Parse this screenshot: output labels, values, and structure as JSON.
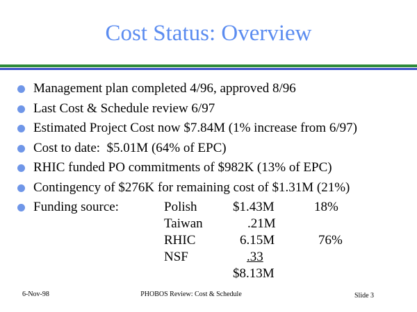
{
  "title": "Cost Status: Overview",
  "bullets": [
    "Management plan completed 4/96, approved 8/96",
    "Last Cost & Schedule review 6/97",
    "Estimated Project Cost now $7.84M (1% increase from 6/97)",
    "Cost to date:  $5.01M (64% of EPC)",
    "RHIC funded PO commitments of $982K (13% of EPC)",
    "Contingency of $276K for remaining cost of $1.31M (21%)",
    "Funding source:"
  ],
  "funding": {
    "rows": [
      {
        "name": "Polish",
        "amount": "$1.43M",
        "percent": "18%"
      },
      {
        "name": "Taiwan",
        "amount": ".21M"
      },
      {
        "name": "RHIC",
        "amount": "6.15M",
        "percent": "76%"
      },
      {
        "name": "NSF",
        "amount": ".33"
      }
    ],
    "total": "$8.13M"
  },
  "footer": {
    "date": "6-Nov-98",
    "center": "PHOBOS Review: Cost & Schedule",
    "slide": "Slide 3"
  }
}
